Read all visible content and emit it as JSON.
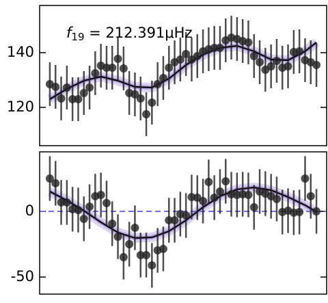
{
  "chart_data": [
    {
      "type": "scatter",
      "annotation": {
        "symbol": "f",
        "subscript": "19",
        "text": " = 212.391μHz"
      },
      "x": [
        0,
        1,
        2,
        3,
        4,
        5,
        6,
        7,
        8,
        9,
        10,
        11,
        12,
        13,
        14,
        15,
        16,
        17,
        18,
        19,
        20,
        21,
        22,
        23,
        24,
        25,
        26,
        27,
        28,
        29,
        30,
        31,
        32,
        33,
        34,
        35,
        36,
        37,
        38,
        39,
        40,
        41,
        42,
        43,
        44,
        45,
        46,
        47
      ],
      "values": [
        128.5,
        127.5,
        123.25,
        127.25,
        123,
        123,
        125.25,
        127.25,
        132.5,
        135.25,
        134.5,
        134.5,
        137.75,
        134.25,
        125.25,
        124.75,
        123.25,
        117.5,
        121.75,
        128.5,
        130.75,
        134.5,
        136.5,
        137.5,
        139.5,
        137.5,
        138.75,
        140.5,
        141.25,
        141.75,
        141.75,
        144.5,
        145.5,
        145,
        144.25,
        143.75,
        138.75,
        136.5,
        133.75,
        135,
        137,
        134.5,
        135,
        140.25,
        140.5,
        137.25,
        136.5,
        135.5
      ],
      "errors": [
        8,
        8,
        8,
        8,
        8,
        8,
        8,
        8,
        8,
        8,
        8,
        8,
        8,
        8,
        8,
        8,
        8,
        8,
        8,
        8,
        8,
        8,
        8,
        8,
        8,
        8,
        8,
        8,
        8,
        8,
        8,
        8,
        8,
        8,
        8,
        8,
        8,
        8,
        8,
        8,
        8,
        8,
        8,
        8,
        8,
        8,
        8,
        8
      ],
      "color": "#222222",
      "model": {
        "x": [
          0,
          3,
          6,
          9,
          12,
          15,
          18,
          21,
          24,
          27,
          30,
          33,
          36,
          39,
          42,
          45,
          47
        ],
        "values": [
          123,
          126.75,
          129.75,
          131.25,
          129.75,
          127.5,
          127.25,
          130.5,
          135.5,
          139.25,
          141.75,
          142.5,
          140.5,
          137.5,
          137.25,
          140.5,
          143.75
        ],
        "color": "#000000",
        "band_color": "#8a6fd0"
      },
      "xlim": [
        -1.8,
        48.8
      ],
      "ylim": [
        106,
        157.25
      ],
      "yticks": [
        120,
        140
      ]
    },
    {
      "type": "scatter",
      "x": [
        0,
        1,
        2,
        3,
        4,
        5,
        6,
        7,
        8,
        9,
        10,
        11,
        12,
        13,
        14,
        15,
        16,
        17,
        18,
        19,
        20,
        21,
        22,
        23,
        24,
        25,
        26,
        27,
        28,
        29,
        30,
        31,
        32,
        33,
        34,
        35,
        36,
        37,
        38,
        39,
        40,
        41,
        42,
        43,
        44,
        45,
        46,
        47
      ],
      "values": [
        25,
        21.4,
        6.8,
        6.8,
        1.6,
        1,
        -5.7,
        3.6,
        11.5,
        12.5,
        6.3,
        -9.4,
        -19.3,
        -34.9,
        -25,
        -12.5,
        -33.3,
        -33.3,
        -41.1,
        -29.7,
        -28.6,
        -6.8,
        -6.8,
        -2.1,
        -3.1,
        10.9,
        10.4,
        7.8,
        22.4,
        10.4,
        15.1,
        22.9,
        13,
        12.5,
        13,
        12.5,
        3.1,
        15.1,
        13.5,
        11.5,
        9.4,
        -0.5,
        0.5,
        -1,
        -0.5,
        25,
        11.5,
        0
      ],
      "errors": [
        17,
        17,
        17,
        17,
        17,
        17,
        17,
        17,
        17,
        17,
        17,
        17,
        17,
        17,
        17,
        17,
        17,
        17,
        17,
        17,
        17,
        17,
        17,
        17,
        17,
        17,
        17,
        17,
        17,
        17,
        17,
        17,
        17,
        17,
        17,
        17,
        17,
        17,
        17,
        17,
        17,
        17,
        17,
        17,
        17,
        17,
        17,
        17
      ],
      "color": "#222222",
      "model": {
        "x": [
          0,
          3,
          6,
          9,
          12,
          15,
          18,
          21,
          24,
          27,
          30,
          33,
          36,
          39,
          42,
          45,
          47
        ],
        "values": [
          15.1,
          8.3,
          0.5,
          -8.3,
          -16.1,
          -20.3,
          -19.8,
          -15.1,
          -6.8,
          3.1,
          11.5,
          16.7,
          18.2,
          16.1,
          10.9,
          4.7,
          -0.5
        ],
        "color": "#000000",
        "band_color": "#8a6fd0"
      },
      "reference_line": {
        "value": 0,
        "color": "#6f6ff0"
      },
      "xlim": [
        -1.8,
        48.8
      ],
      "ylim": [
        -63,
        45.3
      ],
      "yticks": [
        -50,
        0
      ]
    }
  ]
}
